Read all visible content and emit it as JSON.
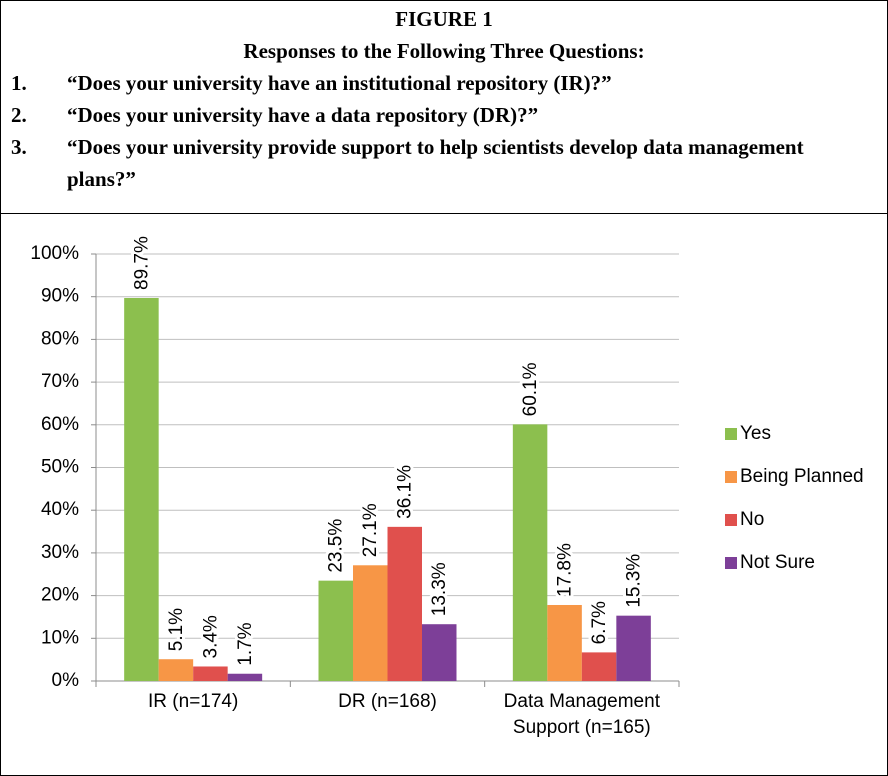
{
  "chart_data": {
    "type": "bar",
    "title": "FIGURE 1",
    "subtitle": "Responses to the Following Three Questions:",
    "questions": [
      {
        "number": "1.",
        "text": "“Does your university have an institutional repository (IR)?”"
      },
      {
        "number": "2.",
        "text": "“Does your university have a data repository (DR)?”"
      },
      {
        "number": "3.",
        "text": "“Does your university provide support to help scientists develop data management plans?”"
      }
    ],
    "categories": [
      "IR (n=174)",
      "DR (n=168)",
      "Data Management Support (n=165)"
    ],
    "series": [
      {
        "name": "Yes",
        "color": "#8cbf4e",
        "values": [
          89.7,
          23.5,
          60.1
        ],
        "value_labels": [
          "89.7%",
          "23.5%",
          "60.1%"
        ]
      },
      {
        "name": "Being Planned",
        "color": "#f79646",
        "values": [
          5.1,
          27.1,
          17.8
        ],
        "value_labels": [
          "5.1%",
          "27.1%",
          "17.8%"
        ]
      },
      {
        "name": "No",
        "color": "#e0504d",
        "values": [
          3.4,
          36.1,
          6.7
        ],
        "value_labels": [
          "3.4%",
          "36.1%",
          "6.7%"
        ]
      },
      {
        "name": "Not Sure",
        "color": "#7d3f98",
        "values": [
          1.7,
          13.3,
          15.3
        ],
        "value_labels": [
          "1.7%",
          "13.3%",
          "15.3%"
        ]
      }
    ],
    "ylim": [
      0,
      100
    ],
    "yticks": [
      {
        "value": 0,
        "label": "0%"
      },
      {
        "value": 10,
        "label": "10%"
      },
      {
        "value": 20,
        "label": "20%"
      },
      {
        "value": 30,
        "label": "30%"
      },
      {
        "value": 40,
        "label": "40%"
      },
      {
        "value": 50,
        "label": "50%"
      },
      {
        "value": 60,
        "label": "60%"
      },
      {
        "value": 70,
        "label": "70%"
      },
      {
        "value": 80,
        "label": "80%"
      },
      {
        "value": 90,
        "label": "90%"
      },
      {
        "value": 100,
        "label": "100%"
      }
    ],
    "grid": true,
    "legend": "right"
  }
}
